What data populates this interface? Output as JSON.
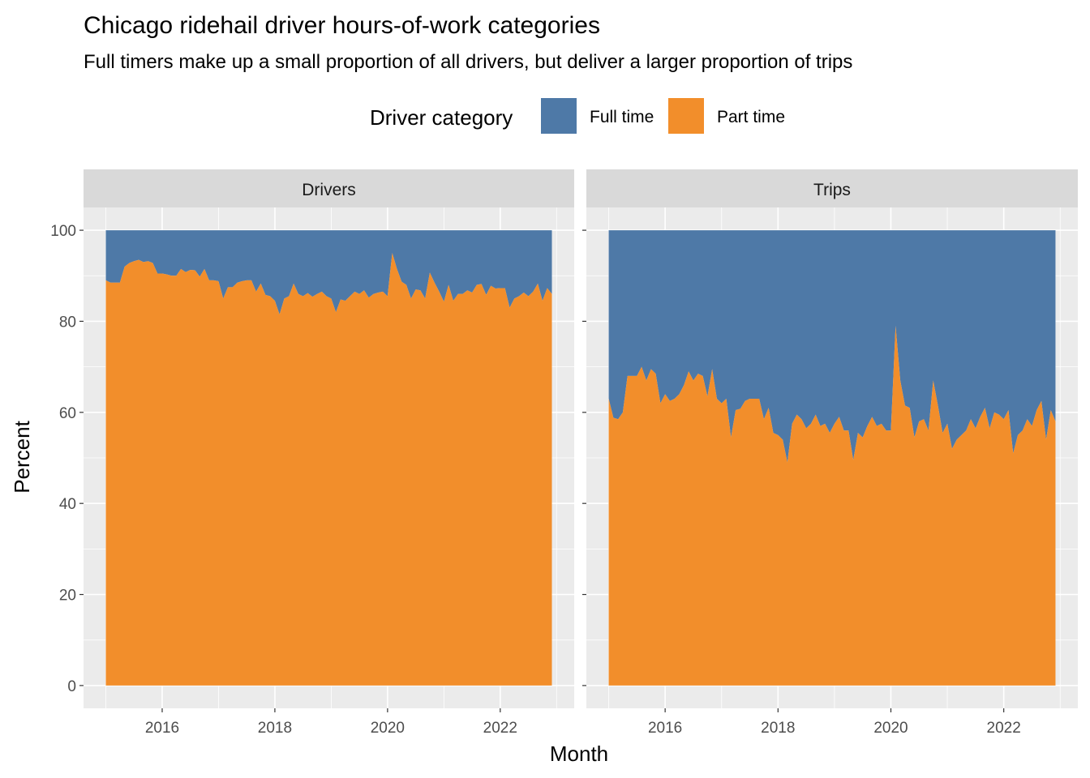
{
  "title": "Chicago ridehail driver hours-of-work categories",
  "subtitle": "Full timers make up a small proportion of all drivers, but deliver a larger proportion of trips",
  "legend": {
    "title": "Driver category",
    "items": [
      {
        "label": "Full time",
        "color": "#4E79A7"
      },
      {
        "label": "Part time",
        "color": "#F28E2B"
      }
    ]
  },
  "chart_data": {
    "type": "area",
    "stacked": true,
    "xlabel": "Month",
    "ylabel": "Percent",
    "xlim": [
      "2015-01",
      "2022-12"
    ],
    "ylim": [
      0,
      100
    ],
    "x_ticks": [
      "2016",
      "2018",
      "2020",
      "2022"
    ],
    "y_ticks": [
      "0",
      "20",
      "40",
      "60",
      "80",
      "100"
    ],
    "grid": true,
    "legend_position": "top",
    "panels": [
      {
        "name": "Drivers",
        "x": [
          "2015-01",
          "2015-02",
          "2015-03",
          "2015-04",
          "2015-05",
          "2015-06",
          "2015-07",
          "2015-08",
          "2015-09",
          "2015-10",
          "2015-11",
          "2015-12",
          "2016-01",
          "2016-02",
          "2016-03",
          "2016-04",
          "2016-05",
          "2016-06",
          "2016-07",
          "2016-08",
          "2016-09",
          "2016-10",
          "2016-11",
          "2016-12",
          "2017-01",
          "2017-02",
          "2017-03",
          "2017-04",
          "2017-05",
          "2017-06",
          "2017-07",
          "2017-08",
          "2017-09",
          "2017-10",
          "2017-11",
          "2017-12",
          "2018-01",
          "2018-02",
          "2018-03",
          "2018-04",
          "2018-05",
          "2018-06",
          "2018-07",
          "2018-08",
          "2018-09",
          "2018-10",
          "2018-11",
          "2018-12",
          "2019-01",
          "2019-02",
          "2019-03",
          "2019-04",
          "2019-05",
          "2019-06",
          "2019-07",
          "2019-08",
          "2019-09",
          "2019-10",
          "2019-11",
          "2019-12",
          "2020-01",
          "2020-02",
          "2020-03",
          "2020-04",
          "2020-05",
          "2020-06",
          "2020-07",
          "2020-08",
          "2020-09",
          "2020-10",
          "2020-11",
          "2020-12",
          "2021-01",
          "2021-02",
          "2021-03",
          "2021-04",
          "2021-05",
          "2021-06",
          "2021-07",
          "2021-08",
          "2021-09",
          "2021-10",
          "2021-11",
          "2021-12",
          "2022-01",
          "2022-02",
          "2022-03",
          "2022-04",
          "2022-05",
          "2022-06",
          "2022-07",
          "2022-08",
          "2022-09",
          "2022-10",
          "2022-11",
          "2022-12"
        ],
        "series": [
          {
            "name": "Part time",
            "values": [
              89,
              88.5,
              88.5,
              88.5,
              92,
              92.8,
              93.2,
              93.5,
              93,
              93.2,
              92.8,
              90.5,
              90.5,
              90.3,
              90,
              90,
              91.5,
              90.8,
              91.3,
              91.2,
              89.8,
              91.5,
              89,
              89,
              88.8,
              85,
              87.5,
              87.5,
              88.5,
              88.8,
              89,
              89,
              86.5,
              88.3,
              85.8,
              85.5,
              84.5,
              81.5,
              85,
              85.5,
              88.3,
              86,
              85.5,
              86.2,
              85.4,
              86,
              86.5,
              85.5,
              85,
              82,
              84.8,
              84.5,
              85.5,
              86.5,
              86,
              86.8,
              85.2,
              86,
              86.3,
              86.5,
              85.5,
              95,
              91.5,
              88.7,
              88,
              85,
              87,
              86.8,
              85,
              90.7,
              88.5,
              86.5,
              84.3,
              88,
              84.5,
              86,
              86,
              86.8,
              86.3,
              88,
              88.2,
              85.8,
              87.8,
              87.2,
              87.3,
              87.3,
              83,
              85,
              85.5,
              86.3,
              85.5,
              86.5,
              88.3,
              84.5,
              87.3,
              86
            ]
          },
          {
            "name": "Full time",
            "values": [
              11,
              11.5,
              11.5,
              11.5,
              8,
              7.2,
              6.8,
              6.5,
              7,
              6.8,
              7.2,
              9.5,
              9.5,
              9.7,
              10,
              10,
              8.5,
              9.2,
              8.7,
              8.8,
              10.2,
              8.5,
              11,
              11,
              11.2,
              15,
              12.5,
              12.5,
              11.5,
              11.2,
              11,
              11,
              13.5,
              11.7,
              14.2,
              14.5,
              15.5,
              18.5,
              15,
              14.5,
              11.7,
              14,
              14.5,
              13.8,
              14.6,
              14,
              13.5,
              14.5,
              15,
              18,
              15.2,
              15.5,
              14.5,
              13.5,
              14,
              13.2,
              14.8,
              14,
              13.7,
              13.5,
              14.5,
              5,
              8.5,
              11.3,
              12,
              15,
              13,
              13.2,
              15,
              9.3,
              11.5,
              13.5,
              15.7,
              12,
              15.5,
              14,
              14,
              13.2,
              13.7,
              12,
              11.8,
              14.2,
              12.2,
              12.8,
              12.7,
              12.7,
              17,
              15,
              14.5,
              13.7,
              14.5,
              13.5,
              11.7,
              15.5,
              12.7,
              14
            ]
          }
        ]
      },
      {
        "name": "Trips",
        "x": [
          "2015-01",
          "2015-02",
          "2015-03",
          "2015-04",
          "2015-05",
          "2015-06",
          "2015-07",
          "2015-08",
          "2015-09",
          "2015-10",
          "2015-11",
          "2015-12",
          "2016-01",
          "2016-02",
          "2016-03",
          "2016-04",
          "2016-05",
          "2016-06",
          "2016-07",
          "2016-08",
          "2016-09",
          "2016-10",
          "2016-11",
          "2016-12",
          "2017-01",
          "2017-02",
          "2017-03",
          "2017-04",
          "2017-05",
          "2017-06",
          "2017-07",
          "2017-08",
          "2017-09",
          "2017-10",
          "2017-11",
          "2017-12",
          "2018-01",
          "2018-02",
          "2018-03",
          "2018-04",
          "2018-05",
          "2018-06",
          "2018-07",
          "2018-08",
          "2018-09",
          "2018-10",
          "2018-11",
          "2018-12",
          "2019-01",
          "2019-02",
          "2019-03",
          "2019-04",
          "2019-05",
          "2019-06",
          "2019-07",
          "2019-08",
          "2019-09",
          "2019-10",
          "2019-11",
          "2019-12",
          "2020-01",
          "2020-02",
          "2020-03",
          "2020-04",
          "2020-05",
          "2020-06",
          "2020-07",
          "2020-08",
          "2020-09",
          "2020-10",
          "2020-11",
          "2020-12",
          "2021-01",
          "2021-02",
          "2021-03",
          "2021-04",
          "2021-05",
          "2021-06",
          "2021-07",
          "2021-08",
          "2021-09",
          "2021-10",
          "2021-11",
          "2021-12",
          "2022-01",
          "2022-02",
          "2022-03",
          "2022-04",
          "2022-05",
          "2022-06",
          "2022-07",
          "2022-08",
          "2022-09",
          "2022-10",
          "2022-11",
          "2022-12"
        ],
        "series": [
          {
            "name": "Part time",
            "values": [
              63,
              58.8,
              58.5,
              60,
              68,
              68,
              68,
              70,
              67,
              69.5,
              68.5,
              62,
              64,
              62.5,
              63,
              64,
              66,
              69,
              67,
              68.5,
              68,
              63.5,
              69.5,
              63,
              62,
              63,
              54.5,
              60.5,
              60.8,
              62.5,
              63,
              63,
              63,
              58.5,
              61,
              55.5,
              55,
              54,
              49,
              57.5,
              59.5,
              58.5,
              56.5,
              57.5,
              59.5,
              57,
              57.5,
              55.5,
              57.5,
              59,
              56,
              56,
              49.5,
              55.5,
              54.5,
              57,
              59,
              57,
              57.5,
              56,
              56,
              79,
              67,
              61.5,
              61,
              54.5,
              58,
              58.5,
              56,
              67,
              61.5,
              55.5,
              57.5,
              52,
              54,
              55,
              56,
              58.5,
              56.5,
              59,
              61,
              56.5,
              60,
              59.5,
              58.5,
              60.5,
              51,
              55,
              56,
              58.5,
              57,
              60.5,
              62.5,
              54,
              60.5,
              58
            ]
          },
          {
            "name": "Full time",
            "values": [
              37,
              41.2,
              41.5,
              40,
              32,
              32,
              32,
              30,
              33,
              30.5,
              31.5,
              38,
              36,
              37.5,
              37,
              36,
              34,
              31,
              33,
              31.5,
              32,
              36.5,
              30.5,
              37,
              38,
              37,
              45.5,
              39.5,
              39.2,
              37.5,
              37,
              37,
              37,
              41.5,
              39,
              44.5,
              45,
              46,
              51,
              42.5,
              40.5,
              41.5,
              43.5,
              42.5,
              40.5,
              43,
              42.5,
              44.5,
              42.5,
              41,
              44,
              44,
              50.5,
              44.5,
              45.5,
              43,
              41,
              43,
              42.5,
              44,
              44,
              21,
              33,
              38.5,
              39,
              45.5,
              42,
              41.5,
              44,
              33,
              38.5,
              44.5,
              42.5,
              48,
              46,
              45,
              44,
              41.5,
              43.5,
              41,
              39,
              43.5,
              40,
              40.5,
              41.5,
              39.5,
              49,
              45,
              44,
              41.5,
              43,
              39.5,
              37.5,
              46,
              39.5,
              42
            ]
          }
        ]
      }
    ]
  }
}
